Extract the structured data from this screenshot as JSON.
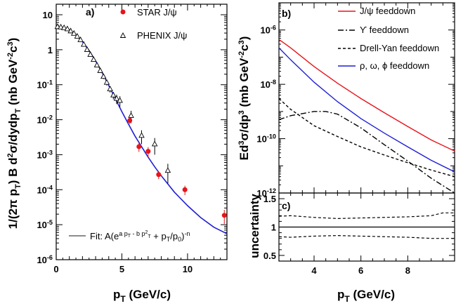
{
  "chart_data": [
    {
      "id": "a",
      "panel_label": "a)",
      "type": "scatter",
      "scale": "log-y",
      "xlabel": "p_T (GeV/c)",
      "ylabel": "1/(2π p_T) B d²σ/dydp_T (nb GeV⁻²c³)",
      "xlim": [
        0,
        13
      ],
      "ylim": [
        1e-06,
        20
      ],
      "x_ticks": [
        0,
        5,
        10
      ],
      "y_tick_labels": [
        "10",
        "1",
        "10⁻¹",
        "10⁻²",
        "10⁻³",
        "10⁻⁴",
        "10⁻⁵",
        "10⁻⁶"
      ],
      "legend": {
        "placement": "top-right",
        "items": [
          "STAR J/ψ",
          "PHENIX J/ψ"
        ]
      },
      "fit_legend": {
        "placement": "bottom-left",
        "text": "Fit: A(e^{a p_T - b p_T^2} + p_T/p_0)^{-n}"
      },
      "series": [
        {
          "name": "STAR J/ψ",
          "marker": "filled-circle",
          "color": "#e8141a",
          "points": [
            {
              "x": 5.6,
              "y": 0.0095,
              "err": 0.002
            },
            {
              "x": 6.3,
              "y": 0.0017,
              "err": 0.0005
            },
            {
              "x": 7.0,
              "y": 0.00125,
              "err": 0.0004
            },
            {
              "x": 7.8,
              "y": 0.00027,
              "err": 7e-05
            },
            {
              "x": 9.8,
              "y": 0.0001,
              "err": 3e-05
            },
            {
              "x": 12.8,
              "y": 1.85e-05,
              "err": 8e-06
            }
          ]
        },
        {
          "name": "PHENIX J/ψ",
          "marker": "open-triangle",
          "color": "#000000",
          "points": [
            {
              "x": 0.1,
              "y": 4.5,
              "err": 0.5
            },
            {
              "x": 0.35,
              "y": 4.4,
              "err": 0.45
            },
            {
              "x": 0.6,
              "y": 4.2,
              "err": 0.4
            },
            {
              "x": 0.85,
              "y": 3.9,
              "err": 0.35
            },
            {
              "x": 1.1,
              "y": 3.4,
              "err": 0.3
            },
            {
              "x": 1.35,
              "y": 2.9,
              "err": 0.25
            },
            {
              "x": 1.6,
              "y": 2.4,
              "err": 0.2
            },
            {
              "x": 1.85,
              "y": 1.9,
              "err": 0.15
            },
            {
              "x": 2.1,
              "y": 1.4,
              "err": 0.12
            },
            {
              "x": 2.35,
              "y": 1.0,
              "err": 0.09
            },
            {
              "x": 2.6,
              "y": 0.72,
              "err": 0.07
            },
            {
              "x": 2.85,
              "y": 0.52,
              "err": 0.05
            },
            {
              "x": 3.1,
              "y": 0.36,
              "err": 0.04
            },
            {
              "x": 3.35,
              "y": 0.25,
              "err": 0.03
            },
            {
              "x": 3.6,
              "y": 0.17,
              "err": 0.025
            },
            {
              "x": 3.85,
              "y": 0.115,
              "err": 0.02
            },
            {
              "x": 4.1,
              "y": 0.075,
              "err": 0.015
            },
            {
              "x": 4.35,
              "y": 0.05,
              "err": 0.012
            },
            {
              "x": 4.6,
              "y": 0.04,
              "err": 0.012
            },
            {
              "x": 4.85,
              "y": 0.035,
              "err": 0.012
            },
            {
              "x": 5.7,
              "y": 0.013,
              "err": 0.005
            },
            {
              "x": 6.5,
              "y": 0.0035,
              "err": 0.0015
            },
            {
              "x": 7.5,
              "y": 0.002,
              "err": 0.001
            },
            {
              "x": 8.5,
              "y": 0.00035,
              "err": 0.0002
            }
          ]
        }
      ],
      "fit_curve": {
        "name": "Fit",
        "color": "#1f1fd6",
        "points": [
          [
            0,
            4.5
          ],
          [
            0.5,
            4.3
          ],
          [
            1,
            3.6
          ],
          [
            1.5,
            2.7
          ],
          [
            2,
            1.7
          ],
          [
            2.5,
            0.95
          ],
          [
            3,
            0.48
          ],
          [
            3.5,
            0.22
          ],
          [
            4,
            0.095
          ],
          [
            4.5,
            0.04
          ],
          [
            5,
            0.017
          ],
          [
            5.5,
            0.0075
          ],
          [
            6,
            0.0034
          ],
          [
            6.5,
            0.0017
          ],
          [
            7,
            0.00085
          ],
          [
            7.5,
            0.00045
          ],
          [
            8,
            0.00025
          ],
          [
            9,
            8.5e-05
          ],
          [
            10,
            3.5e-05
          ],
          [
            11,
            1.6e-05
          ],
          [
            12,
            8.5e-06
          ],
          [
            13,
            5.5e-06
          ]
        ]
      }
    },
    {
      "id": "b",
      "panel_label": "b)",
      "type": "line",
      "scale": "log-y",
      "ylabel": "Ed³σ/dp³ (mb GeV⁻²c³)",
      "xlim": [
        2.5,
        10
      ],
      "ylim": [
        1e-12,
        1e-05
      ],
      "y_tick_labels": [
        "10⁻⁶",
        "10⁻⁸",
        "10⁻¹⁰",
        "10⁻¹²"
      ],
      "legend": {
        "placement": "top-right",
        "items": [
          "J/ψ feeddown",
          "ϒ feeddown",
          "Drell-Yan feeddown",
          "ρ, ω, ϕ feeddown"
        ]
      },
      "series": [
        {
          "name": "J/ψ feeddown",
          "style": "solid",
          "color": "#e8141a",
          "points": [
            [
              2.5,
              4.5e-07
            ],
            [
              3,
              2.2e-07
            ],
            [
              4,
              4.5e-08
            ],
            [
              5,
              1.1e-08
            ],
            [
              6,
              3e-09
            ],
            [
              7,
              9e-10
            ],
            [
              8,
              2.8e-10
            ],
            [
              9,
              9e-11
            ],
            [
              10,
              3.5e-11
            ]
          ]
        },
        {
          "name": "ϒ feeddown",
          "style": "dash-dot",
          "color": "#000000",
          "points": [
            [
              2.5,
              5e-10
            ],
            [
              3,
              7e-10
            ],
            [
              4,
              1e-09
            ],
            [
              4.5,
              1e-09
            ],
            [
              5,
              8e-10
            ],
            [
              6,
              2.5e-10
            ],
            [
              7,
              6e-11
            ],
            [
              8,
              1.5e-11
            ],
            [
              9,
              3.5e-12
            ],
            [
              10,
              1e-12
            ]
          ]
        },
        {
          "name": "Drell-Yan feeddown",
          "style": "dashed",
          "color": "#000000",
          "points": [
            [
              2.5,
              3e-09
            ],
            [
              3,
              1.2e-09
            ],
            [
              4,
              3e-10
            ],
            [
              5,
              1.2e-10
            ],
            [
              6,
              5e-11
            ],
            [
              7,
              2.5e-11
            ],
            [
              8,
              1.3e-11
            ],
            [
              9,
              7e-12
            ],
            [
              10,
              4e-12
            ]
          ]
        },
        {
          "name": "ρ, ω, ϕ feeddown",
          "style": "solid",
          "color": "#1f1fd6",
          "points": [
            [
              2.5,
              2.2e-07
            ],
            [
              3,
              8e-08
            ],
            [
              4,
              1.2e-08
            ],
            [
              5,
              2.3e-09
            ],
            [
              6,
              5.5e-10
            ],
            [
              7,
              1.6e-10
            ],
            [
              8,
              5e-11
            ],
            [
              9,
              1.6e-11
            ],
            [
              10,
              6e-12
            ]
          ]
        }
      ]
    },
    {
      "id": "c",
      "panel_label": "c)",
      "type": "line",
      "xlabel": "p_T (GeV/c)",
      "ylabel": "uncertainty",
      "xlim": [
        2.5,
        10
      ],
      "ylim": [
        0.4,
        1.6
      ],
      "x_ticks": [
        4,
        6,
        8
      ],
      "y_ticks": [
        0.5,
        1,
        1.5
      ],
      "series": [
        {
          "name": "",
          "style": "solid",
          "color": "#000000",
          "points": [
            [
              2.5,
              1
            ],
            [
              10,
              1
            ]
          ]
        },
        {
          "name": "",
          "style": "dashed",
          "color": "#000000",
          "points": [
            [
              2.5,
              1.19
            ],
            [
              3,
              1.2
            ],
            [
              4,
              1.17
            ],
            [
              5,
              1.15
            ],
            [
              6,
              1.16
            ],
            [
              7,
              1.17
            ],
            [
              8,
              1.18
            ],
            [
              9,
              1.2
            ],
            [
              9.5,
              1.25
            ],
            [
              10,
              1.25
            ]
          ]
        },
        {
          "name": "",
          "style": "dashed",
          "color": "#000000",
          "points": [
            [
              2.5,
              0.83
            ],
            [
              3,
              0.82
            ],
            [
              4,
              0.84
            ],
            [
              5,
              0.85
            ],
            [
              6,
              0.84
            ],
            [
              7,
              0.83
            ],
            [
              8,
              0.82
            ],
            [
              9,
              0.8
            ],
            [
              10,
              0.8
            ]
          ]
        }
      ]
    }
  ]
}
